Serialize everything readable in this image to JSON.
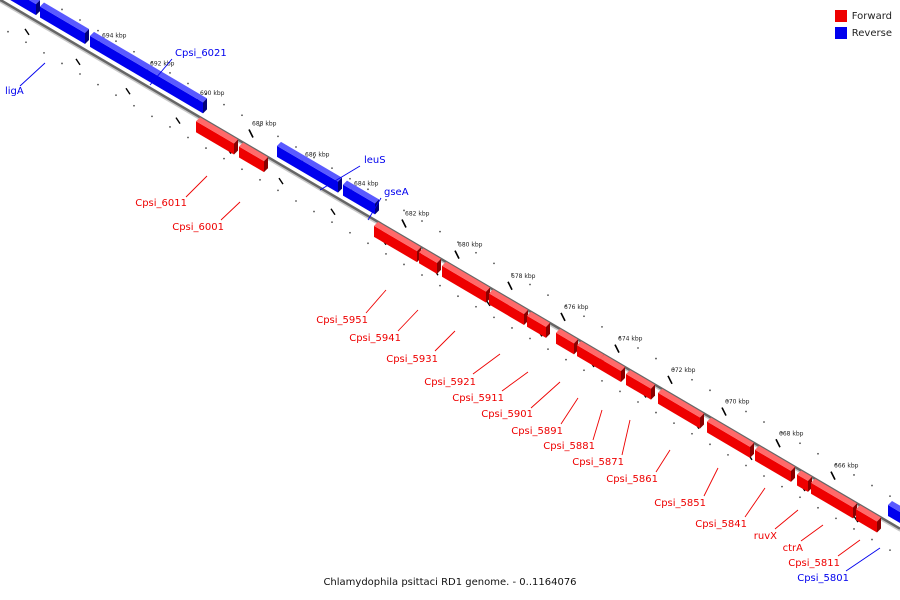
{
  "caption": "Chlamydophila psittaci RD1 genome. - 0..1164076",
  "legend": [
    {
      "label": "Forward",
      "color": "#ee0000"
    },
    {
      "label": "Reverse",
      "color": "#0000ee"
    }
  ],
  "colors": {
    "forward": "#ee0000",
    "reverse": "#0000ee",
    "backbone": "#888888"
  },
  "scale_ticks": [
    "694 kbp",
    "692 kbp",
    "690 kbp",
    "688 kbp",
    "686 kbp",
    "684 kbp",
    "682 kbp",
    "680 kbp",
    "678 kbp",
    "676 kbp",
    "674 kbp",
    "672 kbp",
    "670 kbp",
    "668 kbp",
    "666 kbp"
  ],
  "genes": [
    {
      "label": "ligA",
      "strand": "reverse"
    },
    {
      "label": "Cpsi_6021",
      "strand": "reverse"
    },
    {
      "label": "leuS",
      "strand": "reverse"
    },
    {
      "label": "gseA",
      "strand": "reverse"
    },
    {
      "label": "Cpsi_6011",
      "strand": "forward"
    },
    {
      "label": "Cpsi_6001",
      "strand": "forward"
    },
    {
      "label": "Cpsi_5951",
      "strand": "forward"
    },
    {
      "label": "Cpsi_5941",
      "strand": "forward"
    },
    {
      "label": "Cpsi_5931",
      "strand": "forward"
    },
    {
      "label": "Cpsi_5921",
      "strand": "forward"
    },
    {
      "label": "Cpsi_5911",
      "strand": "forward"
    },
    {
      "label": "Cpsi_5901",
      "strand": "forward"
    },
    {
      "label": "Cpsi_5891",
      "strand": "forward"
    },
    {
      "label": "Cpsi_5881",
      "strand": "forward"
    },
    {
      "label": "Cpsi_5871",
      "strand": "forward"
    },
    {
      "label": "Cpsi_5861",
      "strand": "forward"
    },
    {
      "label": "Cpsi_5851",
      "strand": "forward"
    },
    {
      "label": "Cpsi_5841",
      "strand": "forward"
    },
    {
      "label": "ruvX",
      "strand": "forward"
    },
    {
      "label": "ctrA",
      "strand": "forward"
    },
    {
      "label": "Cpsi_5811",
      "strand": "forward"
    },
    {
      "label": "Cpsi_5801",
      "strand": "reverse"
    }
  ]
}
